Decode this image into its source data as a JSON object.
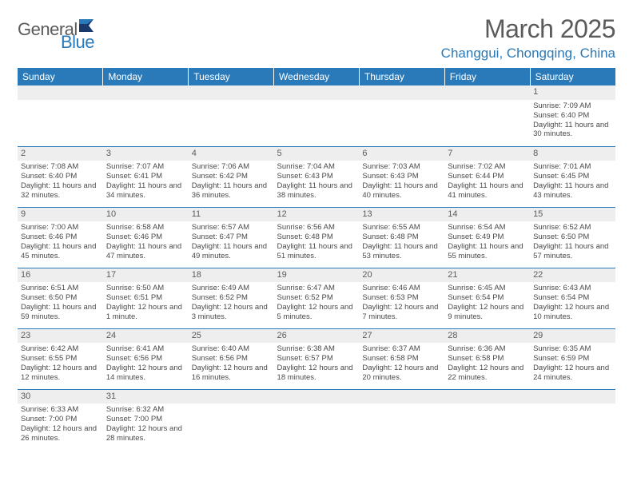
{
  "logo": {
    "text1": "General",
    "text2": "Blue"
  },
  "title": "March 2025",
  "location": "Changgui, Chongqing, China",
  "colors": {
    "header_bg": "#2a7ab9",
    "header_text": "#ffffff",
    "daynum_bg": "#eeeeee",
    "text": "#4a4a4a",
    "title_gray": "#5b5b5b"
  },
  "weekdays": [
    "Sunday",
    "Monday",
    "Tuesday",
    "Wednesday",
    "Thursday",
    "Friday",
    "Saturday"
  ],
  "weeks": [
    [
      null,
      null,
      null,
      null,
      null,
      null,
      {
        "n": "1",
        "sr": "Sunrise: 7:09 AM",
        "ss": "Sunset: 6:40 PM",
        "dl": "Daylight: 11 hours and 30 minutes."
      }
    ],
    [
      {
        "n": "2",
        "sr": "Sunrise: 7:08 AM",
        "ss": "Sunset: 6:40 PM",
        "dl": "Daylight: 11 hours and 32 minutes."
      },
      {
        "n": "3",
        "sr": "Sunrise: 7:07 AM",
        "ss": "Sunset: 6:41 PM",
        "dl": "Daylight: 11 hours and 34 minutes."
      },
      {
        "n": "4",
        "sr": "Sunrise: 7:06 AM",
        "ss": "Sunset: 6:42 PM",
        "dl": "Daylight: 11 hours and 36 minutes."
      },
      {
        "n": "5",
        "sr": "Sunrise: 7:04 AM",
        "ss": "Sunset: 6:43 PM",
        "dl": "Daylight: 11 hours and 38 minutes."
      },
      {
        "n": "6",
        "sr": "Sunrise: 7:03 AM",
        "ss": "Sunset: 6:43 PM",
        "dl": "Daylight: 11 hours and 40 minutes."
      },
      {
        "n": "7",
        "sr": "Sunrise: 7:02 AM",
        "ss": "Sunset: 6:44 PM",
        "dl": "Daylight: 11 hours and 41 minutes."
      },
      {
        "n": "8",
        "sr": "Sunrise: 7:01 AM",
        "ss": "Sunset: 6:45 PM",
        "dl": "Daylight: 11 hours and 43 minutes."
      }
    ],
    [
      {
        "n": "9",
        "sr": "Sunrise: 7:00 AM",
        "ss": "Sunset: 6:46 PM",
        "dl": "Daylight: 11 hours and 45 minutes."
      },
      {
        "n": "10",
        "sr": "Sunrise: 6:58 AM",
        "ss": "Sunset: 6:46 PM",
        "dl": "Daylight: 11 hours and 47 minutes."
      },
      {
        "n": "11",
        "sr": "Sunrise: 6:57 AM",
        "ss": "Sunset: 6:47 PM",
        "dl": "Daylight: 11 hours and 49 minutes."
      },
      {
        "n": "12",
        "sr": "Sunrise: 6:56 AM",
        "ss": "Sunset: 6:48 PM",
        "dl": "Daylight: 11 hours and 51 minutes."
      },
      {
        "n": "13",
        "sr": "Sunrise: 6:55 AM",
        "ss": "Sunset: 6:48 PM",
        "dl": "Daylight: 11 hours and 53 minutes."
      },
      {
        "n": "14",
        "sr": "Sunrise: 6:54 AM",
        "ss": "Sunset: 6:49 PM",
        "dl": "Daylight: 11 hours and 55 minutes."
      },
      {
        "n": "15",
        "sr": "Sunrise: 6:52 AM",
        "ss": "Sunset: 6:50 PM",
        "dl": "Daylight: 11 hours and 57 minutes."
      }
    ],
    [
      {
        "n": "16",
        "sr": "Sunrise: 6:51 AM",
        "ss": "Sunset: 6:50 PM",
        "dl": "Daylight: 11 hours and 59 minutes."
      },
      {
        "n": "17",
        "sr": "Sunrise: 6:50 AM",
        "ss": "Sunset: 6:51 PM",
        "dl": "Daylight: 12 hours and 1 minute."
      },
      {
        "n": "18",
        "sr": "Sunrise: 6:49 AM",
        "ss": "Sunset: 6:52 PM",
        "dl": "Daylight: 12 hours and 3 minutes."
      },
      {
        "n": "19",
        "sr": "Sunrise: 6:47 AM",
        "ss": "Sunset: 6:52 PM",
        "dl": "Daylight: 12 hours and 5 minutes."
      },
      {
        "n": "20",
        "sr": "Sunrise: 6:46 AM",
        "ss": "Sunset: 6:53 PM",
        "dl": "Daylight: 12 hours and 7 minutes."
      },
      {
        "n": "21",
        "sr": "Sunrise: 6:45 AM",
        "ss": "Sunset: 6:54 PM",
        "dl": "Daylight: 12 hours and 9 minutes."
      },
      {
        "n": "22",
        "sr": "Sunrise: 6:43 AM",
        "ss": "Sunset: 6:54 PM",
        "dl": "Daylight: 12 hours and 10 minutes."
      }
    ],
    [
      {
        "n": "23",
        "sr": "Sunrise: 6:42 AM",
        "ss": "Sunset: 6:55 PM",
        "dl": "Daylight: 12 hours and 12 minutes."
      },
      {
        "n": "24",
        "sr": "Sunrise: 6:41 AM",
        "ss": "Sunset: 6:56 PM",
        "dl": "Daylight: 12 hours and 14 minutes."
      },
      {
        "n": "25",
        "sr": "Sunrise: 6:40 AM",
        "ss": "Sunset: 6:56 PM",
        "dl": "Daylight: 12 hours and 16 minutes."
      },
      {
        "n": "26",
        "sr": "Sunrise: 6:38 AM",
        "ss": "Sunset: 6:57 PM",
        "dl": "Daylight: 12 hours and 18 minutes."
      },
      {
        "n": "27",
        "sr": "Sunrise: 6:37 AM",
        "ss": "Sunset: 6:58 PM",
        "dl": "Daylight: 12 hours and 20 minutes."
      },
      {
        "n": "28",
        "sr": "Sunrise: 6:36 AM",
        "ss": "Sunset: 6:58 PM",
        "dl": "Daylight: 12 hours and 22 minutes."
      },
      {
        "n": "29",
        "sr": "Sunrise: 6:35 AM",
        "ss": "Sunset: 6:59 PM",
        "dl": "Daylight: 12 hours and 24 minutes."
      }
    ],
    [
      {
        "n": "30",
        "sr": "Sunrise: 6:33 AM",
        "ss": "Sunset: 7:00 PM",
        "dl": "Daylight: 12 hours and 26 minutes."
      },
      {
        "n": "31",
        "sr": "Sunrise: 6:32 AM",
        "ss": "Sunset: 7:00 PM",
        "dl": "Daylight: 12 hours and 28 minutes."
      },
      null,
      null,
      null,
      null,
      null
    ]
  ]
}
